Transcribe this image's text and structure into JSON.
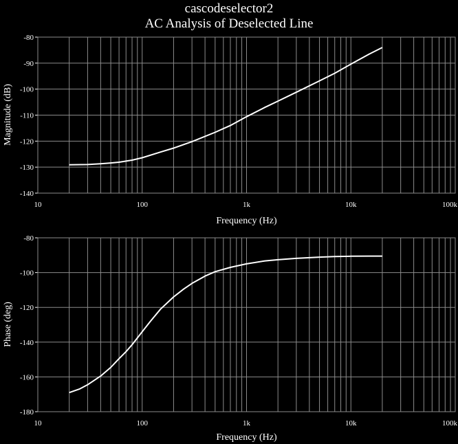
{
  "title": "cascodeselector2",
  "subtitle": "AC Analysis of Deselected Line",
  "colors": {
    "background": "#000000",
    "trace": "#ffffff",
    "grid": "#8c8c8c",
    "text": "#ffffff"
  },
  "chart_data": [
    {
      "type": "line",
      "xscale": "log",
      "xlim": [
        10,
        100000
      ],
      "ylim": [
        -140,
        -80
      ],
      "xlabel": "Frequency (Hz)",
      "ylabel": "Magnitude (dB)",
      "grid": true,
      "xticks": [
        10,
        100,
        1000,
        10000,
        100000
      ],
      "xtick_labels": [
        "10",
        "100",
        "1k",
        "10k",
        "100k"
      ],
      "yticks": [
        -80,
        -90,
        -100,
        -110,
        -120,
        -130,
        -140
      ],
      "ytick_labels": [
        "-80",
        "-90",
        "-100",
        "-110",
        "-120",
        "-130",
        "-140"
      ],
      "series": [
        {
          "x": [
            20,
            30,
            40,
            50,
            60,
            80,
            100,
            150,
            200,
            300,
            500,
            700,
            1000,
            1500,
            2000,
            3000,
            5000,
            7000,
            10000,
            15000,
            20000
          ],
          "y": [
            -129.1,
            -129.0,
            -128.7,
            -128.4,
            -128.1,
            -127.3,
            -126.4,
            -124.2,
            -122.7,
            -120.2,
            -116.6,
            -114.0,
            -110.6,
            -107.0,
            -104.6,
            -101.2,
            -96.8,
            -93.9,
            -90.4,
            -86.5,
            -84.0
          ]
        }
      ]
    },
    {
      "type": "line",
      "xscale": "log",
      "xlim": [
        10,
        100000
      ],
      "ylim": [
        -180,
        -80
      ],
      "xlabel": "Frequency (Hz)",
      "ylabel": "Phase (deg)",
      "grid": true,
      "xticks": [
        10,
        100,
        1000,
        10000,
        100000
      ],
      "xtick_labels": [
        "10",
        "100",
        "1k",
        "10k",
        "100k"
      ],
      "yticks": [
        -80,
        -100,
        -120,
        -140,
        -160,
        -180
      ],
      "ytick_labels": [
        "-80",
        "-100",
        "-120",
        "-140",
        "-160",
        "-180"
      ],
      "series": [
        {
          "x": [
            20,
            25,
            30,
            40,
            50,
            60,
            70,
            80,
            100,
            120,
            150,
            200,
            250,
            300,
            400,
            500,
            700,
            1000,
            1500,
            2000,
            3000,
            5000,
            7000,
            10000,
            15000,
            20000
          ],
          "y": [
            -169,
            -167,
            -164.5,
            -159.5,
            -154.5,
            -149.5,
            -145.5,
            -141.5,
            -134,
            -128,
            -121,
            -114,
            -109.5,
            -106.2,
            -102,
            -99.5,
            -97,
            -95,
            -93.3,
            -92.6,
            -91.8,
            -91.1,
            -90.8,
            -90.6,
            -90.5,
            -90.5
          ]
        }
      ]
    }
  ]
}
